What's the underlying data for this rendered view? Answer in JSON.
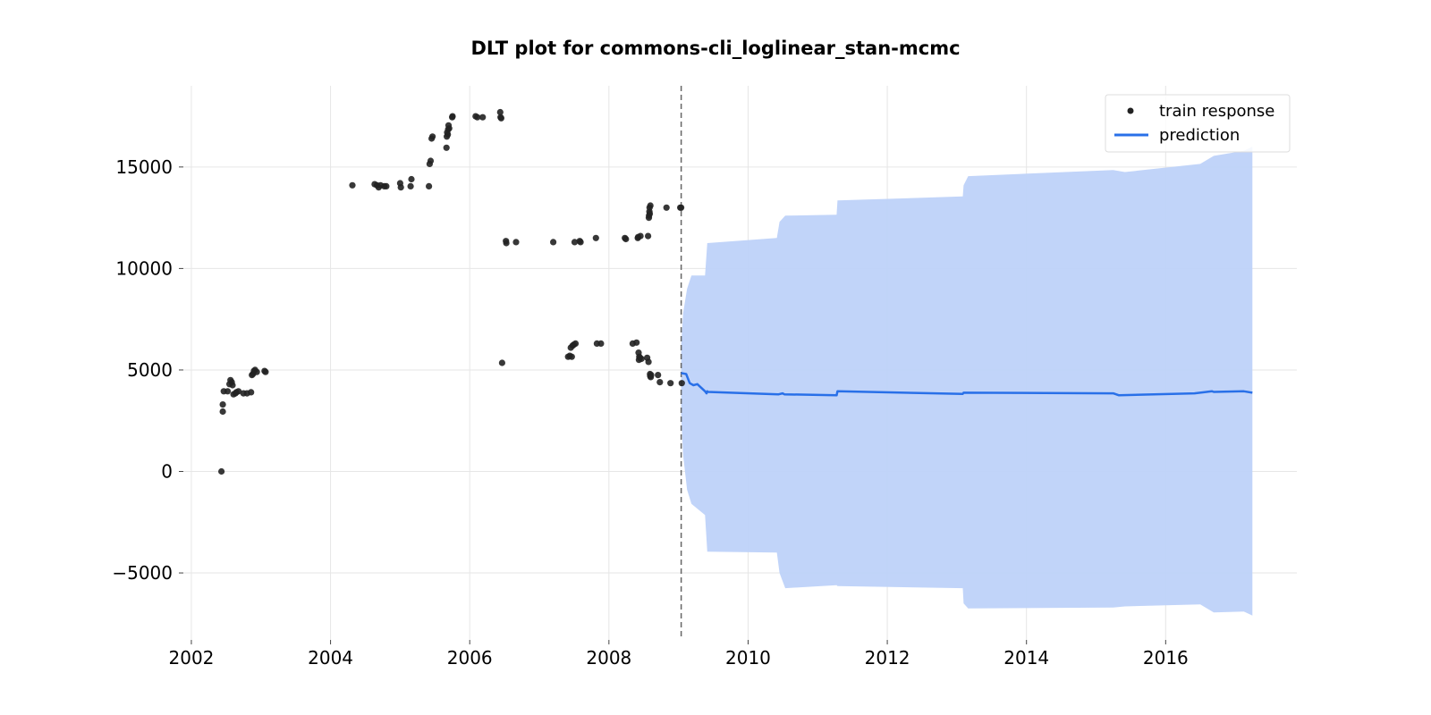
{
  "chart_data": {
    "type": "scatter",
    "title": "DLT plot for commons-cli_loglinear_stan-mcmc",
    "xlabel": "",
    "ylabel": "",
    "x_axis_type": "date",
    "xlim": [
      "2001-11-20",
      "2017-11-20"
    ],
    "ylim": [
      -8300,
      19000
    ],
    "x_ticks": [
      2002,
      2004,
      2006,
      2008,
      2010,
      2012,
      2014,
      2016
    ],
    "y_ticks": [
      -5000,
      0,
      5000,
      10000,
      15000
    ],
    "y_tick_labels": [
      "−5000",
      "0",
      "5000",
      "10000",
      "15000"
    ],
    "grid": true,
    "legend_position": "top-right",
    "colors": {
      "train": "#222222",
      "prediction": "#2970e8",
      "band": "#bed2f9",
      "cutoff": "#666666"
    },
    "cutoff_date": "2009-01-15",
    "series": [
      {
        "name": "train response",
        "kind": "scatter",
        "points": [
          [
            "2002-06-08",
            0
          ],
          [
            "2002-06-15",
            2950
          ],
          [
            "2002-06-15",
            3300
          ],
          [
            "2002-06-20",
            3950
          ],
          [
            "2002-07-10",
            3950
          ],
          [
            "2002-07-20",
            4300
          ],
          [
            "2002-07-25",
            4500
          ],
          [
            "2002-08-01",
            4400
          ],
          [
            "2002-08-05",
            4250
          ],
          [
            "2002-08-10",
            3800
          ],
          [
            "2002-08-20",
            3850
          ],
          [
            "2002-08-25",
            3900
          ],
          [
            "2002-09-05",
            3950
          ],
          [
            "2002-10-01",
            3850
          ],
          [
            "2002-10-20",
            3850
          ],
          [
            "2002-11-10",
            3900
          ],
          [
            "2002-11-15",
            4750
          ],
          [
            "2002-11-20",
            4800
          ],
          [
            "2002-11-25",
            4950
          ],
          [
            "2002-12-01",
            5000
          ],
          [
            "2002-12-10",
            4900
          ],
          [
            "2003-01-20",
            4950
          ],
          [
            "2003-01-25",
            4900
          ],
          [
            "2004-04-25",
            14100
          ],
          [
            "2004-08-20",
            14150
          ],
          [
            "2004-09-01",
            14100
          ],
          [
            "2004-09-10",
            14000
          ],
          [
            "2004-09-20",
            14100
          ],
          [
            "2004-10-10",
            14050
          ],
          [
            "2004-10-20",
            14050
          ],
          [
            "2005-01-01",
            14200
          ],
          [
            "2005-01-05",
            14000
          ],
          [
            "2005-02-25",
            14050
          ],
          [
            "2005-03-01",
            14400
          ],
          [
            "2005-06-01",
            14050
          ],
          [
            "2005-06-05",
            15150
          ],
          [
            "2005-06-10",
            15300
          ],
          [
            "2005-06-15",
            16400
          ],
          [
            "2005-06-20",
            16500
          ],
          [
            "2005-09-01",
            15950
          ],
          [
            "2005-09-03",
            16500
          ],
          [
            "2005-09-05",
            16700
          ],
          [
            "2005-09-08",
            16600
          ],
          [
            "2005-09-10",
            16850
          ],
          [
            "2005-09-12",
            17050
          ],
          [
            "2005-09-15",
            16900
          ],
          [
            "2005-10-01",
            17450
          ],
          [
            "2005-10-03",
            17500
          ],
          [
            "2006-02-01",
            17500
          ],
          [
            "2006-02-10",
            17450
          ],
          [
            "2006-03-10",
            17450
          ],
          [
            "2006-06-10",
            17700
          ],
          [
            "2006-06-12",
            17450
          ],
          [
            "2006-06-15",
            17400
          ],
          [
            "2006-06-20",
            5350
          ],
          [
            "2006-07-10",
            11350
          ],
          [
            "2006-07-12",
            11250
          ],
          [
            "2006-09-01",
            11300
          ],
          [
            "2007-03-15",
            11300
          ],
          [
            "2007-06-01",
            5650
          ],
          [
            "2007-06-10",
            5700
          ],
          [
            "2007-06-15",
            6100
          ],
          [
            "2007-06-20",
            5650
          ],
          [
            "2007-06-25",
            6200
          ],
          [
            "2007-07-01",
            6250
          ],
          [
            "2007-07-05",
            11300
          ],
          [
            "2007-07-10",
            6300
          ],
          [
            "2007-08-01",
            11350
          ],
          [
            "2007-08-05",
            11300
          ],
          [
            "2007-10-25",
            11500
          ],
          [
            "2007-10-30",
            6300
          ],
          [
            "2007-11-20",
            6300
          ],
          [
            "2008-03-25",
            11500
          ],
          [
            "2008-03-30",
            11450
          ],
          [
            "2008-05-05",
            6300
          ],
          [
            "2008-05-25",
            6350
          ],
          [
            "2008-06-01",
            11500
          ],
          [
            "2008-06-03",
            11550
          ],
          [
            "2008-06-05",
            5850
          ],
          [
            "2008-06-07",
            5500
          ],
          [
            "2008-06-09",
            5650
          ],
          [
            "2008-06-12",
            5600
          ],
          [
            "2008-06-15",
            11600
          ],
          [
            "2008-06-20",
            5550
          ],
          [
            "2008-07-20",
            5600
          ],
          [
            "2008-07-25",
            11600
          ],
          [
            "2008-07-27",
            5400
          ],
          [
            "2008-07-29",
            12500
          ],
          [
            "2008-07-30",
            12600
          ],
          [
            "2008-08-01",
            12800
          ],
          [
            "2008-08-02",
            13000
          ],
          [
            "2008-08-03",
            12700
          ],
          [
            "2008-08-04",
            4800
          ],
          [
            "2008-08-05",
            4700
          ],
          [
            "2008-08-06",
            13100
          ],
          [
            "2008-08-08",
            4650
          ],
          [
            "2008-08-10",
            4750
          ],
          [
            "2008-09-15",
            4750
          ],
          [
            "2008-09-25",
            4400
          ],
          [
            "2008-10-30",
            13000
          ],
          [
            "2008-11-20",
            4350
          ],
          [
            "2009-01-10",
            13000
          ],
          [
            "2009-01-15",
            13000
          ],
          [
            "2009-01-18",
            4350
          ]
        ]
      },
      {
        "name": "prediction",
        "kind": "line",
        "points": [
          [
            "2009-01-15",
            4850
          ],
          [
            "2009-02-10",
            4800
          ],
          [
            "2009-03-01",
            4350
          ],
          [
            "2009-03-20",
            4250
          ],
          [
            "2009-04-10",
            4300
          ],
          [
            "2009-05-20",
            3950
          ],
          [
            "2009-05-28",
            3850
          ],
          [
            "2009-06-01",
            3950
          ],
          [
            "2009-06-05",
            3920
          ],
          [
            "2010-06-10",
            3800
          ],
          [
            "2010-07-01",
            3850
          ],
          [
            "2010-07-10",
            3800
          ],
          [
            "2011-04-10",
            3750
          ],
          [
            "2011-04-15",
            3950
          ],
          [
            "2013-02-01",
            3820
          ],
          [
            "2013-02-05",
            3880
          ],
          [
            "2015-04-01",
            3850
          ],
          [
            "2015-05-01",
            3750
          ],
          [
            "2016-06-01",
            3850
          ],
          [
            "2016-09-01",
            3950
          ],
          [
            "2016-09-10",
            3920
          ],
          [
            "2017-02-15",
            3950
          ],
          [
            "2017-04-01",
            3880
          ]
        ]
      }
    ],
    "prediction_band": {
      "upper": [
        [
          "2009-01-15",
          6200
        ],
        [
          "2009-01-25",
          7800
        ],
        [
          "2009-02-15",
          9000
        ],
        [
          "2009-03-10",
          9650
        ],
        [
          "2009-05-20",
          9650
        ],
        [
          "2009-06-01",
          11250
        ],
        [
          "2010-06-01",
          11500
        ],
        [
          "2010-06-15",
          12300
        ],
        [
          "2010-07-15",
          12600
        ],
        [
          "2011-04-10",
          12650
        ],
        [
          "2011-04-15",
          13350
        ],
        [
          "2013-02-01",
          13550
        ],
        [
          "2013-02-05",
          14100
        ],
        [
          "2013-03-01",
          14550
        ],
        [
          "2015-04-01",
          14850
        ],
        [
          "2015-06-01",
          14750
        ],
        [
          "2016-07-01",
          15150
        ],
        [
          "2016-09-10",
          15550
        ],
        [
          "2017-02-15",
          15800
        ],
        [
          "2017-04-01",
          16000
        ]
      ],
      "lower": [
        [
          "2009-01-15",
          2800
        ],
        [
          "2009-01-25",
          800
        ],
        [
          "2009-02-15",
          -900
        ],
        [
          "2009-03-10",
          -1600
        ],
        [
          "2009-05-20",
          -2150
        ],
        [
          "2009-06-01",
          -3950
        ],
        [
          "2010-06-01",
          -4000
        ],
        [
          "2010-06-15",
          -5000
        ],
        [
          "2010-07-15",
          -5750
        ],
        [
          "2011-04-10",
          -5600
        ],
        [
          "2011-04-15",
          -5650
        ],
        [
          "2013-02-01",
          -5750
        ],
        [
          "2013-02-05",
          -6500
        ],
        [
          "2013-03-01",
          -6750
        ],
        [
          "2015-04-01",
          -6700
        ],
        [
          "2015-06-01",
          -6650
        ],
        [
          "2016-07-01",
          -6550
        ],
        [
          "2016-09-10",
          -6950
        ],
        [
          "2017-02-15",
          -6900
        ],
        [
          "2017-04-01",
          -7100
        ]
      ]
    }
  }
}
